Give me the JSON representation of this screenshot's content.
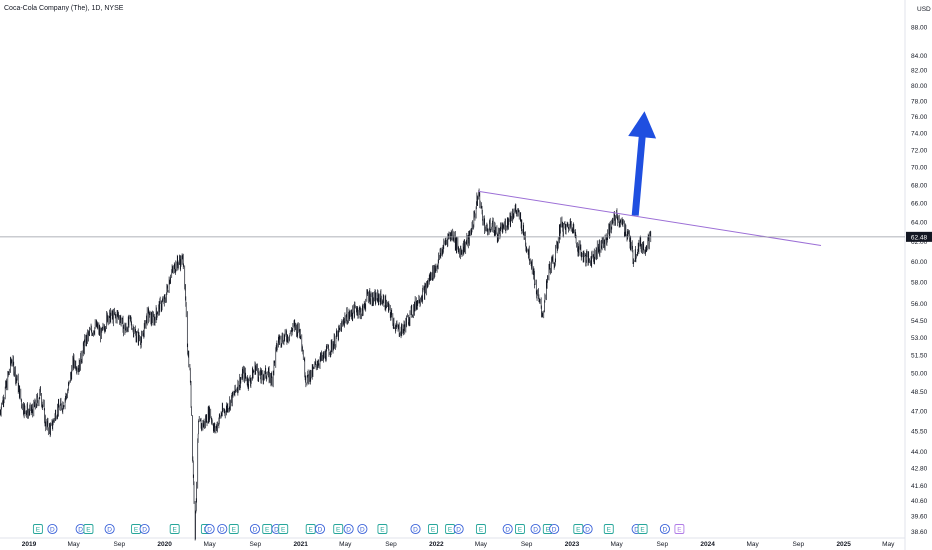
{
  "header": {
    "title": "Coca-Cola Company (The), 1D, NYSE",
    "currency": "USD"
  },
  "colors": {
    "price": "#131722",
    "trendline": "#9c6fd6",
    "arrow": "#1f4fe0",
    "dividend": "#3a62d9",
    "earnings": "#26a69a",
    "earnings_future": "#b07ce6",
    "last_price_bg": "#131722"
  },
  "chart_data": {
    "type": "line",
    "title": "Coca-Cola Company (The), 1D, NYSE",
    "y_scale": "log",
    "ylim": [
      38.2,
      92.0
    ],
    "xlim": [
      "2018-10-15",
      "2025-06-15"
    ],
    "y_ticks": [
      "88.00",
      "84.00",
      "82.00",
      "80.00",
      "78.00",
      "76.00",
      "74.00",
      "72.00",
      "70.00",
      "68.00",
      "66.00",
      "64.00",
      "62.00",
      "60.00",
      "58.00",
      "56.00",
      "54.50",
      "53.00",
      "51.50",
      "50.00",
      "48.50",
      "47.00",
      "45.50",
      "44.00",
      "42.80",
      "41.60",
      "40.60",
      "39.60",
      "38.60"
    ],
    "x_ticks": [
      {
        "label": "2019",
        "date": "2019-01-01",
        "year": true
      },
      {
        "label": "May",
        "date": "2019-05-01",
        "year": false
      },
      {
        "label": "Sep",
        "date": "2019-09-01",
        "year": false
      },
      {
        "label": "2020",
        "date": "2020-01-01",
        "year": true
      },
      {
        "label": "May",
        "date": "2020-05-01",
        "year": false
      },
      {
        "label": "Sep",
        "date": "2020-09-01",
        "year": false
      },
      {
        "label": "2021",
        "date": "2021-01-01",
        "year": true
      },
      {
        "label": "May",
        "date": "2021-05-01",
        "year": false
      },
      {
        "label": "Sep",
        "date": "2021-09-01",
        "year": false
      },
      {
        "label": "2022",
        "date": "2022-01-01",
        "year": true
      },
      {
        "label": "May",
        "date": "2022-05-01",
        "year": false
      },
      {
        "label": "Sep",
        "date": "2022-09-01",
        "year": false
      },
      {
        "label": "2023",
        "date": "2023-01-01",
        "year": true
      },
      {
        "label": "May",
        "date": "2023-05-01",
        "year": false
      },
      {
        "label": "Sep",
        "date": "2023-09-01",
        "year": false
      },
      {
        "label": "2024",
        "date": "2024-01-01",
        "year": true
      },
      {
        "label": "May",
        "date": "2024-05-01",
        "year": false
      },
      {
        "label": "Sep",
        "date": "2024-09-01",
        "year": false
      },
      {
        "label": "2025",
        "date": "2025-01-01",
        "year": true
      },
      {
        "label": "May",
        "date": "2025-05-01",
        "year": false
      }
    ],
    "series": [
      {
        "x": [
          "2018-10-15",
          "2018-11-01",
          "2018-11-15",
          "2018-12-01",
          "2018-12-15",
          "2019-01-01",
          "2019-01-15",
          "2019-02-01",
          "2019-02-15",
          "2019-03-01",
          "2019-03-15",
          "2019-04-01",
          "2019-04-15",
          "2019-05-01",
          "2019-05-15",
          "2019-06-01",
          "2019-06-15",
          "2019-07-01",
          "2019-07-15",
          "2019-08-01",
          "2019-08-15",
          "2019-09-01",
          "2019-09-15",
          "2019-10-01",
          "2019-10-15",
          "2019-11-01",
          "2019-11-15",
          "2019-12-01",
          "2019-12-15",
          "2020-01-01",
          "2020-01-15",
          "2020-02-01",
          "2020-02-21",
          "2020-03-01",
          "2020-03-10",
          "2020-03-16",
          "2020-03-23",
          "2020-04-01",
          "2020-04-15",
          "2020-05-01",
          "2020-05-15",
          "2020-06-01",
          "2020-06-15",
          "2020-07-01",
          "2020-07-15",
          "2020-08-01",
          "2020-08-15",
          "2020-09-01",
          "2020-09-15",
          "2020-10-01",
          "2020-10-15",
          "2020-11-01",
          "2020-11-15",
          "2020-12-01",
          "2020-12-15",
          "2021-01-01",
          "2021-01-15",
          "2021-02-01",
          "2021-02-15",
          "2021-03-01",
          "2021-03-15",
          "2021-04-01",
          "2021-04-15",
          "2021-05-01",
          "2021-05-15",
          "2021-06-01",
          "2021-06-15",
          "2021-07-01",
          "2021-07-15",
          "2021-08-01",
          "2021-08-15",
          "2021-09-01",
          "2021-09-15",
          "2021-10-01",
          "2021-10-15",
          "2021-11-01",
          "2021-11-15",
          "2021-12-01",
          "2021-12-15",
          "2022-01-01",
          "2022-01-15",
          "2022-02-01",
          "2022-02-15",
          "2022-03-01",
          "2022-03-15",
          "2022-04-01",
          "2022-04-15",
          "2022-04-25",
          "2022-05-01",
          "2022-05-15",
          "2022-06-01",
          "2022-06-15",
          "2022-07-01",
          "2022-07-15",
          "2022-08-01",
          "2022-08-15",
          "2022-09-01",
          "2022-09-15",
          "2022-10-01",
          "2022-10-15",
          "2022-11-01",
          "2022-11-15",
          "2022-12-01",
          "2022-12-15",
          "2023-01-01",
          "2023-01-15",
          "2023-02-01",
          "2023-02-15",
          "2023-03-01",
          "2023-03-15",
          "2023-04-01",
          "2023-04-15",
          "2023-05-01",
          "2023-05-15",
          "2023-06-01",
          "2023-06-15",
          "2023-07-01",
          "2023-07-15",
          "2023-08-01"
        ],
        "values": [
          47.0,
          49.0,
          51.2,
          49.2,
          47.3,
          46.9,
          47.2,
          48.5,
          46.0,
          45.6,
          47.0,
          47.5,
          48.5,
          51.0,
          50.5,
          52.6,
          53.5,
          54.0,
          53.2,
          55.0,
          54.8,
          55.0,
          53.6,
          54.5,
          53.2,
          52.8,
          55.0,
          54.5,
          55.6,
          56.3,
          58.5,
          59.8,
          60.2,
          53.0,
          49.6,
          44.0,
          38.6,
          45.9,
          46.0,
          47.0,
          45.5,
          46.8,
          47.2,
          48.0,
          49.0,
          50.0,
          49.2,
          50.5,
          49.6,
          50.0,
          49.5,
          52.8,
          53.0,
          53.2,
          54.0,
          53.5,
          49.5,
          50.0,
          51.0,
          51.2,
          51.8,
          52.6,
          53.5,
          54.8,
          55.0,
          55.6,
          55.2,
          56.9,
          56.4,
          56.6,
          56.2,
          55.0,
          53.8,
          53.6,
          54.5,
          55.6,
          56.5,
          57.2,
          58.5,
          59.5,
          61.0,
          62.5,
          62.8,
          61.0,
          61.4,
          62.5,
          65.0,
          67.2,
          65.5,
          63.0,
          63.8,
          62.5,
          63.5,
          64.2,
          65.4,
          64.3,
          61.5,
          59.8,
          56.5,
          55.0,
          59.5,
          60.0,
          63.6,
          63.3,
          64.0,
          61.6,
          60.5,
          60.2,
          60.6,
          61.4,
          62.0,
          63.5,
          64.7,
          63.7,
          62.8,
          60.3,
          61.8,
          61.4,
          62.5
        ]
      }
    ],
    "last_price": "62.48",
    "trendline": {
      "from": {
        "x": "2022-04-25",
        "y": 67.3
      },
      "to": {
        "x": "2024-11-01",
        "y": 61.6
      }
    },
    "arrow": {
      "from": {
        "x": "2023-06-20",
        "y": 64.7
      },
      "to": {
        "x": "2023-07-15",
        "y": 76.7
      }
    },
    "events": [
      {
        "type": "E",
        "date": "2019-01-25"
      },
      {
        "type": "D",
        "date": "2019-03-05"
      },
      {
        "type": "D",
        "date": "2019-05-20"
      },
      {
        "type": "E",
        "date": "2019-06-10"
      },
      {
        "type": "D",
        "date": "2019-08-06"
      },
      {
        "type": "E",
        "date": "2019-10-16"
      },
      {
        "type": "D",
        "date": "2019-11-08"
      },
      {
        "type": "E",
        "date": "2020-01-28"
      },
      {
        "type": "E",
        "date": "2020-04-21"
      },
      {
        "type": "D",
        "date": "2020-05-01"
      },
      {
        "type": "D",
        "date": "2020-06-04"
      },
      {
        "type": "E",
        "date": "2020-07-05"
      },
      {
        "type": "D",
        "date": "2020-08-31"
      },
      {
        "type": "E",
        "date": "2020-10-03"
      },
      {
        "type": "D",
        "date": "2020-10-28"
      },
      {
        "type": "E",
        "date": "2020-11-15"
      },
      {
        "type": "E",
        "date": "2021-01-28"
      },
      {
        "type": "D",
        "date": "2021-02-22"
      },
      {
        "type": "E",
        "date": "2021-04-12"
      },
      {
        "type": "D",
        "date": "2021-05-10"
      },
      {
        "type": "D",
        "date": "2021-06-16"
      },
      {
        "type": "E",
        "date": "2021-08-09"
      },
      {
        "type": "D",
        "date": "2021-11-06"
      },
      {
        "type": "E",
        "date": "2021-12-23"
      },
      {
        "type": "E",
        "date": "2022-02-07"
      },
      {
        "type": "D",
        "date": "2022-03-02"
      },
      {
        "type": "E",
        "date": "2022-05-01"
      },
      {
        "type": "D",
        "date": "2022-07-12"
      },
      {
        "type": "E",
        "date": "2022-08-14"
      },
      {
        "type": "D",
        "date": "2022-09-25"
      },
      {
        "type": "E",
        "date": "2022-10-28"
      },
      {
        "type": "D",
        "date": "2022-11-14"
      },
      {
        "type": "E",
        "date": "2023-01-18"
      },
      {
        "type": "D",
        "date": "2023-02-12"
      },
      {
        "type": "E",
        "date": "2023-04-10"
      },
      {
        "type": "D",
        "date": "2023-06-24"
      },
      {
        "type": "E",
        "date": "2023-07-10"
      },
      {
        "type": "D",
        "date": "2023-09-08"
      },
      {
        "type": "E",
        "date": "2023-10-17",
        "future": true
      }
    ]
  }
}
